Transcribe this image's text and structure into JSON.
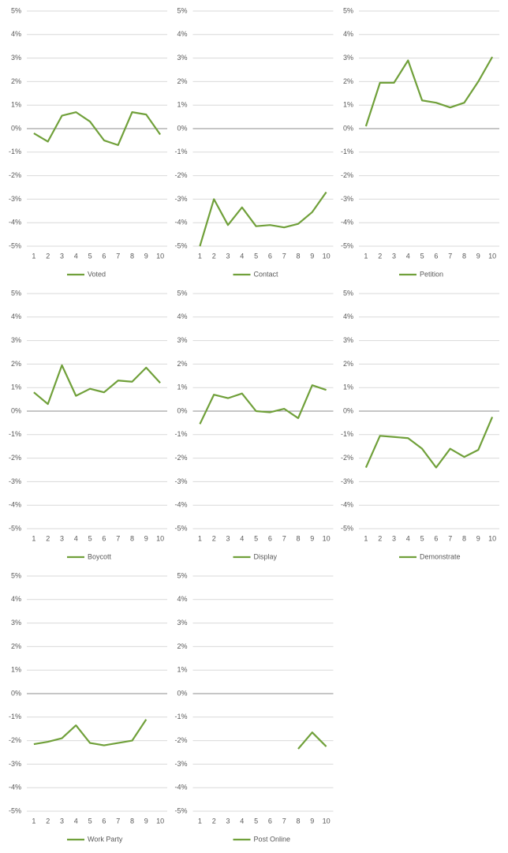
{
  "chart_data": [
    {
      "type": "line",
      "categories": [
        1,
        2,
        3,
        4,
        5,
        6,
        7,
        8,
        9,
        10
      ],
      "ylim": [
        -5,
        5
      ],
      "yticks": [
        {
          "value": 5,
          "label": "5%"
        },
        {
          "value": 4,
          "label": "4%"
        },
        {
          "value": 3,
          "label": "3%"
        },
        {
          "value": 2,
          "label": "2%"
        },
        {
          "value": 1,
          "label": "1%"
        },
        {
          "value": 0,
          "label": "0%"
        },
        {
          "value": -1,
          "label": "-1%"
        },
        {
          "value": -2,
          "label": "-2%"
        },
        {
          "value": -3,
          "label": "-3%"
        },
        {
          "value": -4,
          "label": "-4%"
        },
        {
          "value": -5,
          "label": "-5%"
        }
      ],
      "grid": true,
      "legend": "bottom",
      "series": [
        {
          "name": "Voted",
          "color": "#70a03a",
          "values": [
            -0.2,
            -0.55,
            0.55,
            0.7,
            0.3,
            -0.5,
            -0.7,
            0.7,
            0.6,
            -0.25
          ]
        }
      ]
    },
    {
      "type": "line",
      "categories": [
        1,
        2,
        3,
        4,
        5,
        6,
        7,
        8,
        9,
        10
      ],
      "ylim": [
        -5,
        5
      ],
      "yticks": [
        {
          "value": 5,
          "label": "5%"
        },
        {
          "value": 4,
          "label": "4%"
        },
        {
          "value": 3,
          "label": "3%"
        },
        {
          "value": 2,
          "label": "2%"
        },
        {
          "value": 1,
          "label": "1%"
        },
        {
          "value": 0,
          "label": "0%"
        },
        {
          "value": -1,
          "label": "-1%"
        },
        {
          "value": -2,
          "label": "-2%"
        },
        {
          "value": -3,
          "label": "-3%"
        },
        {
          "value": -4,
          "label": "-4%"
        },
        {
          "value": -5,
          "label": "-5%"
        }
      ],
      "grid": true,
      "legend": "bottom",
      "series": [
        {
          "name": "Contact",
          "color": "#70a03a",
          "values": [
            -5,
            -3,
            -4.1,
            -3.35,
            -4.15,
            -4.1,
            -4.2,
            -4.05,
            -3.55,
            -2.7
          ]
        }
      ]
    },
    {
      "type": "line",
      "categories": [
        1,
        2,
        3,
        4,
        5,
        6,
        7,
        8,
        9,
        10
      ],
      "ylim": [
        -5,
        5
      ],
      "yticks": [
        {
          "value": 5,
          "label": "5%"
        },
        {
          "value": 4,
          "label": "4%"
        },
        {
          "value": 3,
          "label": "3%"
        },
        {
          "value": 2,
          "label": "2%"
        },
        {
          "value": 1,
          "label": "1%"
        },
        {
          "value": 0,
          "label": "0%"
        },
        {
          "value": -1,
          "label": "-1%"
        },
        {
          "value": -2,
          "label": "-2%"
        },
        {
          "value": -3,
          "label": "-3%"
        },
        {
          "value": -4,
          "label": "-4%"
        },
        {
          "value": -5,
          "label": "-5%"
        }
      ],
      "grid": true,
      "legend": "bottom",
      "series": [
        {
          "name": "Petition",
          "color": "#70a03a",
          "values": [
            0.1,
            1.95,
            1.95,
            2.9,
            1.2,
            1.1,
            0.9,
            1.1,
            2,
            3.05
          ]
        }
      ]
    },
    {
      "type": "line",
      "categories": [
        1,
        2,
        3,
        4,
        5,
        6,
        7,
        8,
        9,
        10
      ],
      "ylim": [
        -5,
        5
      ],
      "yticks": [
        {
          "value": 5,
          "label": "5%"
        },
        {
          "value": 4,
          "label": "4%"
        },
        {
          "value": 3,
          "label": "3%"
        },
        {
          "value": 2,
          "label": "2%"
        },
        {
          "value": 1,
          "label": "1%"
        },
        {
          "value": 0,
          "label": "0%"
        },
        {
          "value": -1,
          "label": "-1%"
        },
        {
          "value": -2,
          "label": "-2%"
        },
        {
          "value": -3,
          "label": "-3%"
        },
        {
          "value": -4,
          "label": "-4%"
        },
        {
          "value": -5,
          "label": "-5%"
        }
      ],
      "grid": true,
      "legend": "bottom",
      "series": [
        {
          "name": "Boycott",
          "color": "#70a03a",
          "values": [
            0.8,
            0.3,
            1.95,
            0.65,
            0.95,
            0.8,
            1.3,
            1.25,
            1.85,
            1.2
          ]
        }
      ]
    },
    {
      "type": "line",
      "categories": [
        1,
        2,
        3,
        4,
        5,
        6,
        7,
        8,
        9,
        10
      ],
      "ylim": [
        -5,
        5
      ],
      "yticks": [
        {
          "value": 5,
          "label": "5%"
        },
        {
          "value": 4,
          "label": "4%"
        },
        {
          "value": 3,
          "label": "3%"
        },
        {
          "value": 2,
          "label": "2%"
        },
        {
          "value": 1,
          "label": "1%"
        },
        {
          "value": 0,
          "label": "0%"
        },
        {
          "value": -1,
          "label": "-1%"
        },
        {
          "value": -2,
          "label": "-2%"
        },
        {
          "value": -3,
          "label": "-3%"
        },
        {
          "value": -4,
          "label": "-4%"
        },
        {
          "value": -5,
          "label": "-5%"
        }
      ],
      "grid": true,
      "legend": "bottom",
      "series": [
        {
          "name": "Display",
          "color": "#70a03a",
          "values": [
            -0.55,
            0.7,
            0.55,
            0.75,
            0,
            -0.05,
            0.1,
            -0.3,
            1.1,
            0.9
          ]
        }
      ]
    },
    {
      "type": "line",
      "categories": [
        1,
        2,
        3,
        4,
        5,
        6,
        7,
        8,
        9,
        10
      ],
      "ylim": [
        -5,
        5
      ],
      "yticks": [
        {
          "value": 5,
          "label": "5%"
        },
        {
          "value": 4,
          "label": "4%"
        },
        {
          "value": 3,
          "label": "3%"
        },
        {
          "value": 2,
          "label": "2%"
        },
        {
          "value": 1,
          "label": "1%"
        },
        {
          "value": 0,
          "label": "0%"
        },
        {
          "value": -1,
          "label": "-1%"
        },
        {
          "value": -2,
          "label": "-2%"
        },
        {
          "value": -3,
          "label": "-3%"
        },
        {
          "value": -4,
          "label": "-4%"
        },
        {
          "value": -5,
          "label": "-5%"
        }
      ],
      "grid": true,
      "legend": "bottom",
      "series": [
        {
          "name": "Demonstrate",
          "color": "#70a03a",
          "values": [
            -2.4,
            -1.05,
            -1.1,
            -1.15,
            -1.6,
            -2.4,
            -1.6,
            -1.95,
            -1.65,
            -0.25
          ]
        }
      ]
    },
    {
      "type": "line",
      "categories": [
        1,
        2,
        3,
        4,
        5,
        6,
        7,
        8,
        9,
        10
      ],
      "ylim": [
        -5,
        5
      ],
      "yticks": [
        {
          "value": 5,
          "label": "5%"
        },
        {
          "value": 4,
          "label": "4%"
        },
        {
          "value": 3,
          "label": "3%"
        },
        {
          "value": 2,
          "label": "2%"
        },
        {
          "value": 1,
          "label": "1%"
        },
        {
          "value": 0,
          "label": "0%"
        },
        {
          "value": -1,
          "label": "-1%"
        },
        {
          "value": -2,
          "label": "-2%"
        },
        {
          "value": -3,
          "label": "-3%"
        },
        {
          "value": -4,
          "label": "-4%"
        },
        {
          "value": -5,
          "label": "-5%"
        }
      ],
      "grid": true,
      "legend": "bottom",
      "series": [
        {
          "name": "Work Party",
          "color": "#70a03a",
          "values": [
            -2.15,
            -2.05,
            -1.9,
            -1.35,
            -2.1,
            -2.2,
            -2.1,
            -2,
            -1.1,
            null
          ]
        }
      ]
    },
    {
      "type": "line",
      "categories": [
        1,
        2,
        3,
        4,
        5,
        6,
        7,
        8,
        9,
        10
      ],
      "ylim": [
        -5,
        5
      ],
      "yticks": [
        {
          "value": 5,
          "label": "5%"
        },
        {
          "value": 4,
          "label": "4%"
        },
        {
          "value": 3,
          "label": "3%"
        },
        {
          "value": 2,
          "label": "2%"
        },
        {
          "value": 1,
          "label": "1%"
        },
        {
          "value": 0,
          "label": "0%"
        },
        {
          "value": -1,
          "label": "-1%"
        },
        {
          "value": -2,
          "label": "-2%"
        },
        {
          "value": -3,
          "label": "-3%"
        },
        {
          "value": -4,
          "label": "-4%"
        },
        {
          "value": -5,
          "label": "-5%"
        }
      ],
      "grid": true,
      "legend": "bottom",
      "series": [
        {
          "name": "Post Online",
          "color": "#70a03a",
          "values": [
            null,
            null,
            null,
            null,
            null,
            null,
            null,
            -2.35,
            -1.65,
            -2.25
          ]
        }
      ]
    }
  ]
}
